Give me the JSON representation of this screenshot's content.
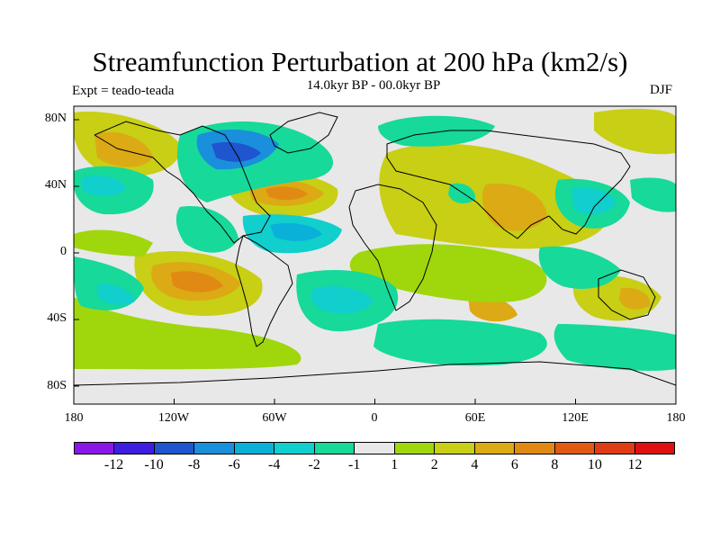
{
  "title": "Streamfunction Perturbation at 200 hPa (km2/s)",
  "subtitle": "14.0kyr BP - 00.0kyr BP",
  "left_label": "Expt = teado-teada",
  "right_label": "DJF",
  "map": {
    "type": "contour-map",
    "projection": "cylindrical-equidistant",
    "variable": "streamfunction perturbation",
    "units": "km2/s",
    "pressure_level_hPa": 200,
    "lon_range": [
      -180,
      180
    ],
    "lat_range": [
      -90,
      90
    ],
    "x_tick_labels": [
      "180",
      "120W",
      "60W",
      "0",
      "60E",
      "120E",
      "180"
    ],
    "x_tick_values": [
      -180,
      -120,
      -60,
      0,
      60,
      120,
      180
    ],
    "y_tick_labels": [
      "80N",
      "40N",
      "0",
      "40S",
      "80S"
    ],
    "y_tick_values": [
      80,
      40,
      0,
      -40,
      -80
    ]
  },
  "colorbar": {
    "labels": [
      "-12",
      "-10",
      "-8",
      "-6",
      "-4",
      "-2",
      "-1",
      "1",
      "2",
      "4",
      "6",
      "8",
      "10",
      "12"
    ],
    "colors": [
      "#8a17e8",
      "#3d1ee0",
      "#1f55cf",
      "#1a8fdc",
      "#0ab0d8",
      "#10cfcd",
      "#16d99a",
      "#e8e8e8",
      "#9fd70c",
      "#c8cf14",
      "#dcaa14",
      "#e08a14",
      "#e05a14",
      "#e03c14",
      "#e01010"
    ]
  }
}
